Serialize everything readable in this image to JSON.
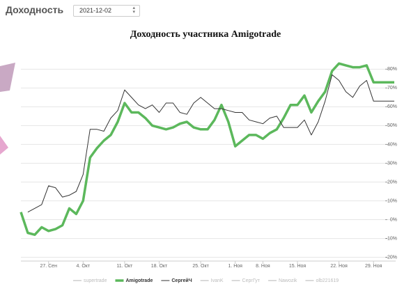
{
  "header": {
    "label": "Доходность",
    "date": "2021-12-02"
  },
  "chart_data": {
    "type": "line",
    "title": "Доходность участника Amigotrade",
    "categories": [
      null,
      null,
      null,
      null,
      "27. Сен",
      null,
      null,
      null,
      null,
      "4. Окт",
      null,
      null,
      null,
      null,
      null,
      "11. Окт",
      null,
      null,
      null,
      null,
      "18. Окт",
      null,
      null,
      null,
      null,
      null,
      "25. Окт",
      null,
      null,
      null,
      null,
      "1. Ноя",
      null,
      null,
      null,
      "8. Ноя",
      null,
      null,
      null,
      null,
      "15. Ноя",
      null,
      null,
      null,
      null,
      null,
      "22. Ноя",
      null,
      null,
      null,
      null,
      "29. Ноя",
      null,
      null,
      null
    ],
    "series": [
      {
        "name": "supertrade",
        "color": "#cccccc",
        "visible": false
      },
      {
        "name": "Amigotrade",
        "color": "#5cb85c",
        "visible": true,
        "width": 3.5,
        "values": [
          4,
          -7,
          -8,
          -4,
          -6,
          -5,
          -3,
          6,
          3,
          10,
          33,
          38,
          42,
          45,
          52,
          62,
          57,
          57,
          54,
          50,
          49,
          48,
          49,
          51,
          52,
          49,
          48,
          48,
          53,
          61,
          52,
          39,
          42,
          45,
          45,
          43,
          46,
          48,
          54,
          61,
          61,
          66,
          57,
          63,
          68,
          79,
          83,
          82,
          81,
          81,
          82,
          73,
          73,
          73,
          73
        ]
      },
      {
        "name": "СергейЧ",
        "color": "#333333",
        "visible": true,
        "width": 1,
        "values": [
          null,
          4,
          6,
          8,
          18,
          17,
          12,
          13,
          15,
          24,
          48,
          48,
          47,
          54,
          58,
          69,
          65,
          61,
          59,
          61,
          57,
          62,
          62,
          57,
          56,
          62,
          65,
          62,
          59,
          59,
          58,
          57,
          57,
          53,
          52,
          51,
          54,
          55,
          49,
          49,
          49,
          53,
          45,
          52,
          63,
          77,
          74,
          68,
          65,
          71,
          74,
          63,
          63,
          63,
          63
        ]
      },
      {
        "name": "IvanK",
        "color": "#cccccc",
        "visible": false
      },
      {
        "name": "СергГут",
        "color": "#cccccc",
        "visible": false
      },
      {
        "name": "Nawozik",
        "color": "#cccccc",
        "visible": false
      },
      {
        "name": "olb221619",
        "color": "#cccccc",
        "visible": false
      }
    ],
    "ylim": [
      -22,
      89
    ],
    "yticks": [
      {
        "value": -20,
        "label": "-20%"
      },
      {
        "value": -10,
        "label": "-10%"
      },
      {
        "value": 0,
        "label": "0%"
      },
      {
        "value": 10,
        "label": "10%"
      },
      {
        "value": 20,
        "label": "20%"
      },
      {
        "value": 30,
        "label": "30%"
      },
      {
        "value": 40,
        "label": "40%"
      },
      {
        "value": 50,
        "label": "50%"
      },
      {
        "value": 60,
        "label": "60%"
      },
      {
        "value": 70,
        "label": "70%"
      },
      {
        "value": 80,
        "label": "80%"
      }
    ],
    "grid": true
  }
}
